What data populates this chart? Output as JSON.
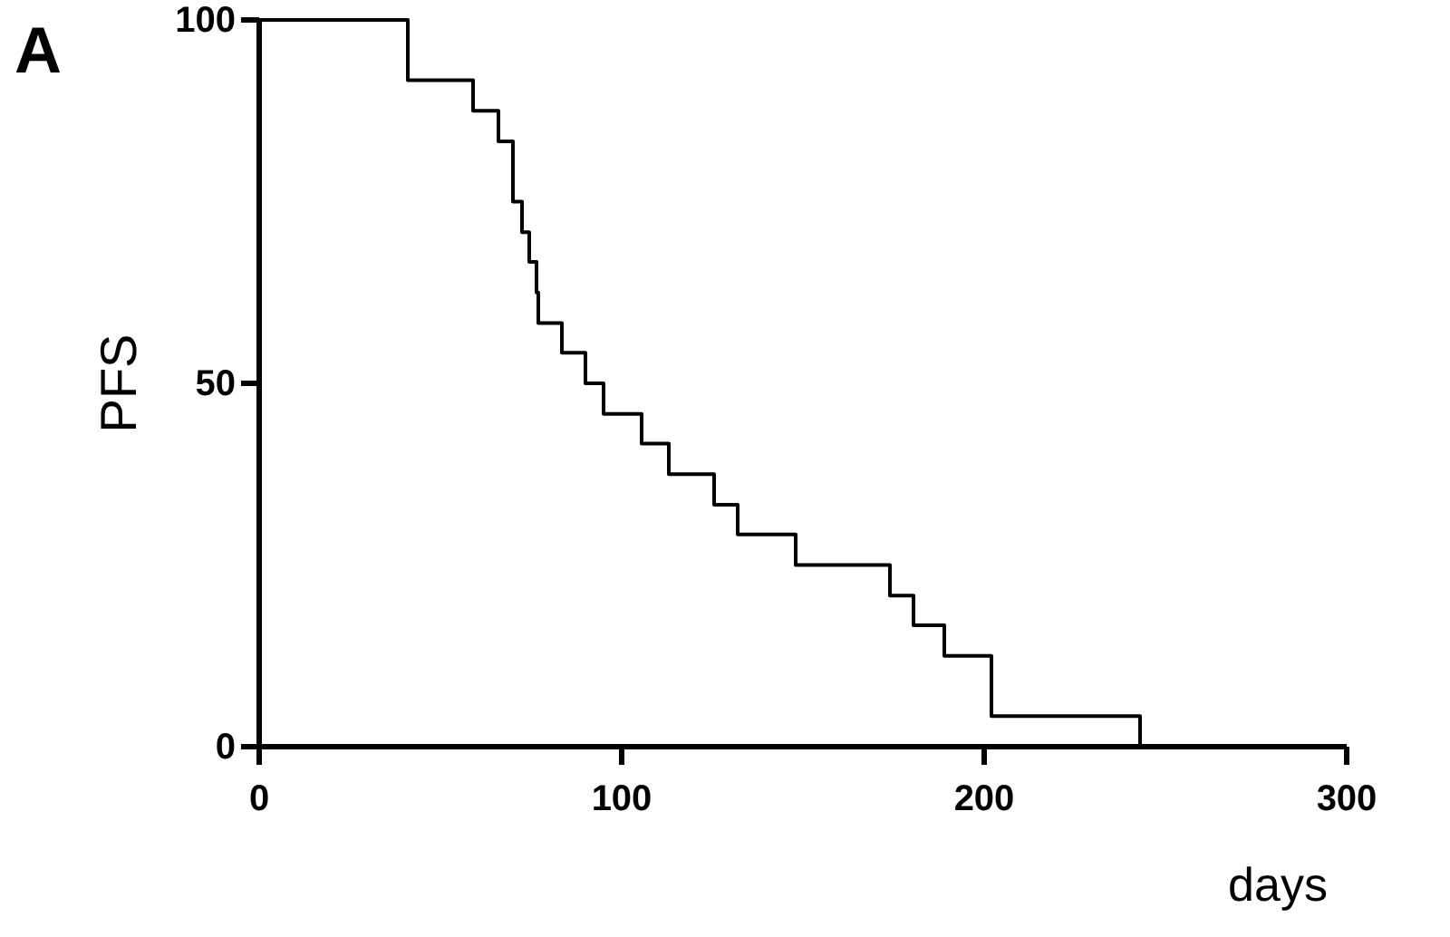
{
  "chart_data": {
    "type": "step",
    "xlabel": "days",
    "ylabel": "PFS",
    "annotations": [
      "A"
    ],
    "x": [
      0,
      41,
      59,
      66,
      70,
      72.5,
      74.5,
      76.5,
      77,
      83.5,
      90,
      95,
      105.5,
      113,
      125.5,
      132,
      148,
      174,
      180.5,
      189,
      202,
      243
    ],
    "values": [
      100,
      91.7,
      87.5,
      83.3,
      75,
      70.8,
      66.7,
      62.5,
      58.3,
      54.2,
      50,
      45.8,
      41.7,
      37.5,
      33.3,
      29.2,
      25,
      20.8,
      16.7,
      12.5,
      4.2,
      0
    ],
    "color": "#000000",
    "xlim": [
      0,
      300
    ],
    "ylim": [
      0,
      100
    ],
    "xticks": [
      0,
      100,
      200,
      300
    ],
    "yticks": [
      0,
      50,
      100
    ],
    "grid": false
  }
}
